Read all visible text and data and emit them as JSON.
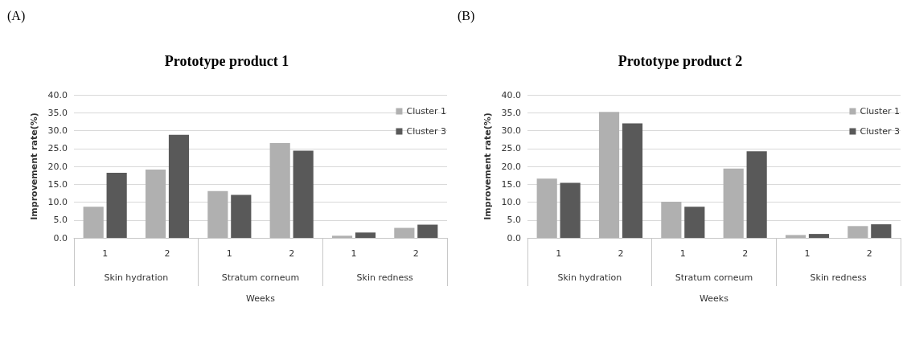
{
  "chart_data": [
    {
      "type": "bar",
      "subtitle": "(A)",
      "title": "Prototype product 1",
      "xlabel": "Weeks",
      "ylabel": "Improvement rate(%)",
      "categories": [
        "1",
        "2",
        "1",
        "2",
        "1",
        "2"
      ],
      "annotations": [
        "Skin hydration",
        "Stratum corneum",
        "Skin redness"
      ],
      "series": [
        {
          "name": "Cluster 1",
          "color": "#b0b0b0",
          "values": [
            8.7,
            19.1,
            13.1,
            26.5,
            0.6,
            2.8
          ]
        },
        {
          "name": "Cluster 3",
          "color": "#595959",
          "values": [
            18.2,
            28.8,
            12.0,
            24.4,
            1.5,
            3.7
          ]
        }
      ],
      "ylim": [
        0,
        40
      ],
      "yticks": [
        {
          "value": 0,
          "label": "0.0"
        },
        {
          "value": 5,
          "label": "5.0"
        },
        {
          "value": 10,
          "label": "10.0"
        },
        {
          "value": 15,
          "label": "15.0"
        },
        {
          "value": 20,
          "label": "20.0"
        },
        {
          "value": 25,
          "label": "25.0"
        },
        {
          "value": 30,
          "label": "30.0"
        },
        {
          "value": 35,
          "label": "35.0"
        },
        {
          "value": 40,
          "label": "40.0"
        }
      ],
      "grid": "y",
      "legend": "top right"
    },
    {
      "type": "bar",
      "subtitle": "(B)",
      "title": "Prototype product 2",
      "xlabel": "Weeks",
      "ylabel": "Improvement rate(%)",
      "categories": [
        "1",
        "2",
        "1",
        "2",
        "1",
        "2"
      ],
      "annotations": [
        "Skin hydration",
        "Stratum corneum",
        "Skin redness"
      ],
      "series": [
        {
          "name": "Cluster 1",
          "color": "#b0b0b0",
          "values": [
            16.6,
            35.2,
            10.1,
            19.4,
            0.8,
            3.3
          ]
        },
        {
          "name": "Cluster 3",
          "color": "#595959",
          "values": [
            15.4,
            32.0,
            8.7,
            24.2,
            1.1,
            3.8
          ]
        }
      ],
      "ylim": [
        0,
        40
      ],
      "yticks": [
        {
          "value": 0,
          "label": "0.0"
        },
        {
          "value": 5,
          "label": "5.0"
        },
        {
          "value": 10,
          "label": "10.0"
        },
        {
          "value": 15,
          "label": "15.0"
        },
        {
          "value": 20,
          "label": "20.0"
        },
        {
          "value": 25,
          "label": "25.0"
        },
        {
          "value": 30,
          "label": "30.0"
        },
        {
          "value": 35,
          "label": "35.0"
        },
        {
          "value": 40,
          "label": "40.0"
        }
      ],
      "grid": "y",
      "legend": "top right"
    }
  ]
}
